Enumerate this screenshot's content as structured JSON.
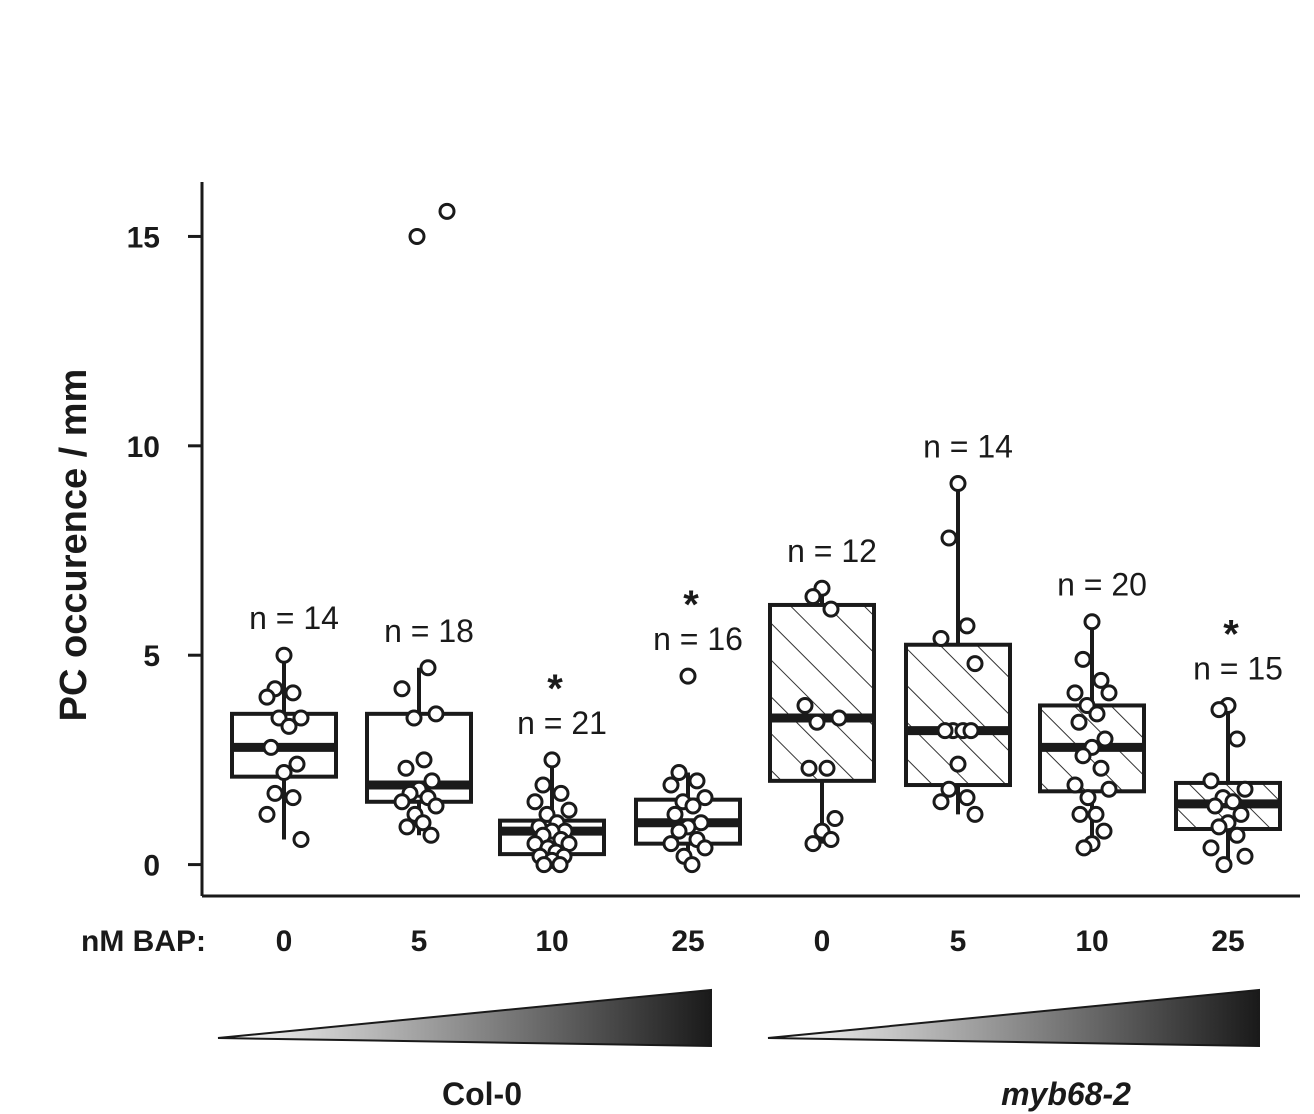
{
  "chart_data": {
    "type": "box",
    "ylabel": "PC occurence / mm",
    "ylim": [
      -0.75,
      16.3
    ],
    "yticks": [
      0,
      5,
      10,
      15
    ],
    "xlabel": "nM BAP:",
    "colors": {
      "ink": "#1a1a1a",
      "hatch": "#333333",
      "point_fill": "#ffffff"
    },
    "groups": [
      {
        "label": "Col-0",
        "italic": false,
        "gradient": [
          "#ffffff",
          "#1a1a1a"
        ]
      },
      {
        "label": "myb68-2",
        "italic": true,
        "gradient": [
          "#ffffff",
          "#1a1a1a"
        ]
      }
    ],
    "boxes": [
      {
        "group": 0,
        "bap": "0",
        "n_label": "n = 14",
        "star": "",
        "hatched": false,
        "whisker_low": 0.6,
        "q1": 2.1,
        "median": 2.8,
        "q3": 3.6,
        "whisker_high": 5.0,
        "points": [
          5.0,
          4.2,
          4.1,
          4.0,
          3.5,
          3.5,
          3.3,
          2.8,
          2.4,
          2.2,
          1.7,
          1.6,
          1.2,
          0.6
        ]
      },
      {
        "group": 0,
        "bap": "5",
        "n_label": "n = 18",
        "star": "",
        "hatched": false,
        "whisker_low": 0.7,
        "q1": 1.5,
        "median": 1.9,
        "q3": 3.6,
        "whisker_high": 4.7,
        "points": [
          15.6,
          15.0,
          4.7,
          4.2,
          3.6,
          3.5,
          2.5,
          2.3,
          2.0,
          1.8,
          1.7,
          1.6,
          1.5,
          1.4,
          1.2,
          1.0,
          0.9,
          0.7
        ]
      },
      {
        "group": 0,
        "bap": "10",
        "n_label": "n = 21",
        "star": "*",
        "hatched": false,
        "whisker_low": 0.0,
        "q1": 0.25,
        "median": 0.8,
        "q3": 1.05,
        "whisker_high": 2.5,
        "points": [
          2.5,
          1.9,
          1.7,
          1.5,
          1.3,
          1.2,
          1.0,
          0.9,
          0.8,
          0.8,
          0.7,
          0.6,
          0.5,
          0.5,
          0.4,
          0.3,
          0.2,
          0.2,
          0.1,
          0.0,
          0.0
        ]
      },
      {
        "group": 0,
        "bap": "25",
        "n_label": "n = 16",
        "star": "*",
        "hatched": false,
        "whisker_low": 0.0,
        "q1": 0.5,
        "median": 1.0,
        "q3": 1.55,
        "whisker_high": 2.2,
        "points": [
          4.5,
          2.2,
          2.0,
          1.9,
          1.6,
          1.5,
          1.4,
          1.2,
          1.0,
          0.9,
          0.8,
          0.6,
          0.5,
          0.4,
          0.2,
          0.0
        ]
      },
      {
        "group": 1,
        "bap": "0",
        "n_label": "n = 12",
        "star": "",
        "hatched": true,
        "whisker_low": 0.5,
        "q1": 2.0,
        "median": 3.5,
        "q3": 6.2,
        "whisker_high": 6.6,
        "points": [
          6.6,
          6.4,
          6.1,
          3.8,
          3.5,
          3.4,
          2.3,
          2.3,
          1.1,
          0.8,
          0.5,
          0.6
        ]
      },
      {
        "group": 1,
        "bap": "5",
        "n_label": "n = 14",
        "star": "",
        "hatched": true,
        "whisker_low": 1.2,
        "q1": 1.9,
        "median": 3.2,
        "q3": 5.25,
        "whisker_high": 9.1,
        "points": [
          9.1,
          7.8,
          5.7,
          5.4,
          4.8,
          3.2,
          3.2,
          3.2,
          3.2,
          2.4,
          1.8,
          1.6,
          1.5,
          1.2
        ]
      },
      {
        "group": 1,
        "bap": "10",
        "n_label": "n = 20",
        "star": "",
        "hatched": true,
        "whisker_low": 0.4,
        "q1": 1.75,
        "median": 2.8,
        "q3": 3.8,
        "whisker_high": 5.8,
        "points": [
          5.8,
          4.9,
          4.4,
          4.1,
          4.1,
          3.8,
          3.6,
          3.4,
          3.0,
          2.8,
          2.6,
          2.3,
          1.9,
          1.8,
          1.6,
          1.2,
          1.2,
          0.8,
          0.5,
          0.4
        ]
      },
      {
        "group": 1,
        "bap": "25",
        "n_label": "n = 15",
        "star": "*",
        "hatched": true,
        "whisker_low": 0.0,
        "q1": 0.85,
        "median": 1.45,
        "q3": 1.95,
        "whisker_high": 3.8,
        "points": [
          3.8,
          3.7,
          3.0,
          2.0,
          1.8,
          1.6,
          1.5,
          1.4,
          1.2,
          1.0,
          0.9,
          0.7,
          0.4,
          0.2,
          0.0
        ]
      }
    ]
  }
}
